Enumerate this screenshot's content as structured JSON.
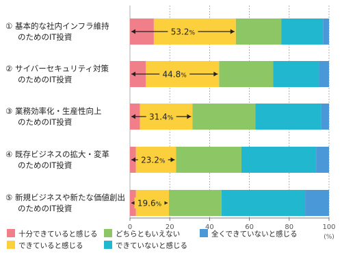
{
  "chart_data": {
    "type": "bar",
    "orientation": "horizontal",
    "stacked": true,
    "categories": [
      [
        "① 基本的な社内インフラ維持",
        "のためのIT投資"
      ],
      [
        "② サイバーセキュリティ対策",
        "のためのIT投資"
      ],
      [
        "③ 業務効率化・生産性向上",
        "のためのIT投資"
      ],
      [
        "④ 既存ビジネスの拡大・変革",
        "のためのIT投資"
      ],
      [
        "⑤ 新規ビジネスや新たな価値創出",
        "のためのIT投資"
      ]
    ],
    "series": [
      {
        "name": "十分できていると感じる",
        "color": "#f07f8a",
        "values": [
          12,
          8,
          5,
          3,
          3
        ]
      },
      {
        "name": "できていると感じる",
        "color": "#fcd03c",
        "values": [
          41.2,
          36.8,
          26.4,
          20.2,
          16.6
        ]
      },
      {
        "name": "どちらともいえない",
        "color": "#8cc665",
        "values": [
          22.8,
          27.2,
          31.6,
          32.8,
          26.4
        ]
      },
      {
        "name": "できていないと感じる",
        "color": "#20b7cf",
        "values": [
          21,
          23,
          33,
          37.5,
          42
        ]
      },
      {
        "name": "全くできていないと感じる",
        "color": "#4b98d8",
        "values": [
          3,
          5,
          4,
          6.5,
          12
        ]
      }
    ],
    "annotations": [
      {
        "value": "53.2",
        "unit": "%"
      },
      {
        "value": "44.8",
        "unit": "%"
      },
      {
        "value": "31.4",
        "unit": "%"
      },
      {
        "value": "23.2",
        "unit": "%"
      },
      {
        "value": "19.6",
        "unit": "%"
      }
    ],
    "xlim": [
      0,
      100
    ],
    "xticks": [
      0,
      20,
      40,
      60,
      80,
      100
    ],
    "x_unit": "(%)",
    "grid": true,
    "legend_position": "bottom"
  }
}
